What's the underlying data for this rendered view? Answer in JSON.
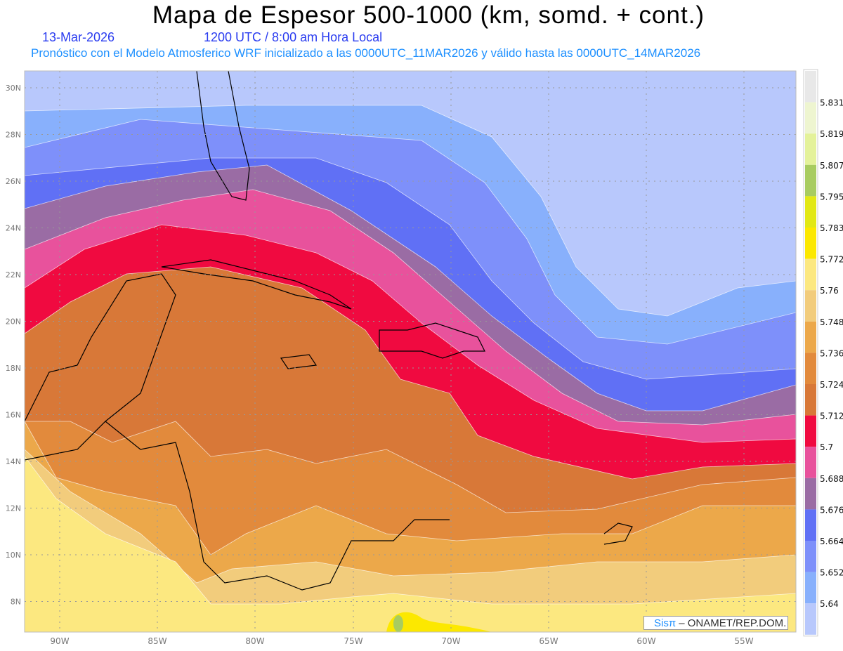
{
  "header": {
    "title": "Mapa de Espesor 500-1000 (km, somd. + cont.)",
    "date": "13-Mar-2026",
    "time": "1200 UTC / 8:00 am Hora Local",
    "subtitle": "Pronóstico con el Modelo Atmosferico WRF inicializado a las 0000UTC_11MAR2026 y válido hasta las  0000UTC_14MAR2026"
  },
  "map": {
    "lat_labels": [
      "30N",
      "28N",
      "26N",
      "24N",
      "22N",
      "20N",
      "18N",
      "16N",
      "14N",
      "12N",
      "10N",
      "8N"
    ],
    "lon_labels": [
      "90W",
      "85W",
      "80W",
      "75W",
      "70W",
      "65W",
      "60W",
      "55W"
    ]
  },
  "colorbar": {
    "labels": [
      "5.831",
      "5.819",
      "5.807",
      "5.795",
      "5.783",
      "5.772",
      "5.76",
      "5.748",
      "5.736",
      "5.724",
      "5.712",
      "5.7",
      "5.688",
      "5.676",
      "5.664",
      "5.652",
      "5.64"
    ],
    "colors": [
      "#e8e8e8",
      "#eef5d0",
      "#e4f29a",
      "#a8cc60",
      "#e2e814",
      "#fce800",
      "#fce880",
      "#f2cc7c",
      "#eca84a",
      "#e28a3c",
      "#d87838",
      "#f00a40",
      "#e8529c",
      "#9a6ca4",
      "#6070f5",
      "#7e90fa",
      "#88b0fc",
      "#b8c8fc"
    ]
  },
  "credit": {
    "brand": "Sisπ",
    "text": "– ONAMET/REP.DOM."
  }
}
